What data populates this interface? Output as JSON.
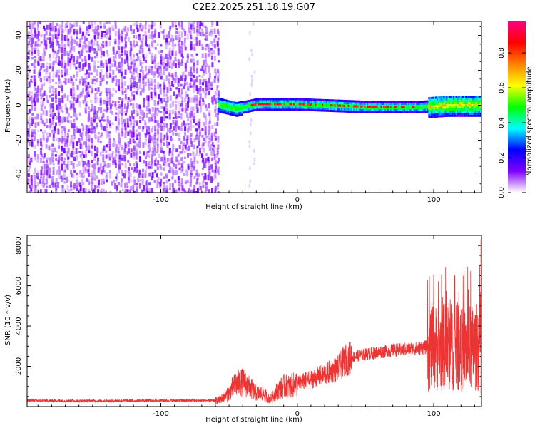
{
  "title": "C2E2.2025.251.18.19.G07",
  "chart_data": [
    {
      "type": "heatmap",
      "title": "C2E2.2025.251.18.19.G07",
      "xlabel": "Height of straight line (km)",
      "ylabel": "Frequency (Hz)",
      "xlim": [
        -198,
        135
      ],
      "ylim": [
        -50,
        48
      ],
      "xticks": [
        -100,
        0,
        100
      ],
      "xtick_labels": [
        "-100",
        "0",
        "100"
      ],
      "yticks": [
        -40,
        -20,
        0,
        20,
        40
      ],
      "ytick_labels": [
        "-40",
        "-20",
        "0",
        "20",
        "40"
      ],
      "noise_region_km": [
        -198,
        -58
      ],
      "signal_track": {
        "x_start_km": -58,
        "x_end_km": 135,
        "center_hz": [
          [
            -58,
            0.5
          ],
          [
            -45,
            -2
          ],
          [
            -30,
            0.5
          ],
          [
            0,
            0.5
          ],
          [
            50,
            -1
          ],
          [
            90,
            -1
          ],
          [
            110,
            0
          ],
          [
            135,
            0
          ]
        ],
        "peak_amplitude_start_km": -35,
        "peak_amplitude_end_km": 85
      },
      "colorbar": {
        "label": "Normalized spectral amplitude",
        "range": [
          0,
          0.98
        ],
        "ticks": [
          0.0,
          0.2,
          0.4,
          0.6,
          0.8
        ],
        "tick_labels": [
          "0.0",
          "0.2",
          "0.4",
          "0.6",
          "0.8"
        ],
        "colors": [
          "#ffffff",
          "#8000ff",
          "#0000ff",
          "#00ffff",
          "#00ff00",
          "#ffff00",
          "#ff8000",
          "#ff0000",
          "#ff0080"
        ]
      }
    },
    {
      "type": "line",
      "xlabel": "Height of straight line (km)",
      "ylabel": "SNR (10 * v/v)",
      "xlim": [
        -198,
        135
      ],
      "ylim": [
        0,
        8500
      ],
      "xticks": [
        -100,
        0,
        100
      ],
      "xtick_labels": [
        "-100",
        "0",
        "100"
      ],
      "yticks": [
        2000,
        4000,
        6000,
        8000
      ],
      "ytick_labels": [
        "2000",
        "4000",
        "6000",
        "8000"
      ],
      "series": [
        {
          "name": "SNR",
          "color": "#ee3333",
          "x": [
            -198,
            -150,
            -100,
            -70,
            -58,
            -50,
            -48,
            -45,
            -40,
            -35,
            -30,
            -25,
            -20,
            -15,
            -10,
            -5,
            0,
            10,
            20,
            30,
            35,
            40,
            50,
            60,
            70,
            80,
            90,
            95,
            100,
            105,
            110,
            115,
            120,
            125,
            130,
            135
          ],
          "y": [
            300,
            280,
            300,
            300,
            300,
            650,
            900,
            1100,
            1200,
            950,
            650,
            650,
            350,
            750,
            1000,
            1000,
            1150,
            1350,
            1600,
            1900,
            2300,
            2450,
            2600,
            2700,
            2800,
            2850,
            2900,
            2950,
            2900,
            2900,
            3000,
            3000,
            2800,
            2900,
            2900,
            3100
          ]
        }
      ]
    }
  ]
}
